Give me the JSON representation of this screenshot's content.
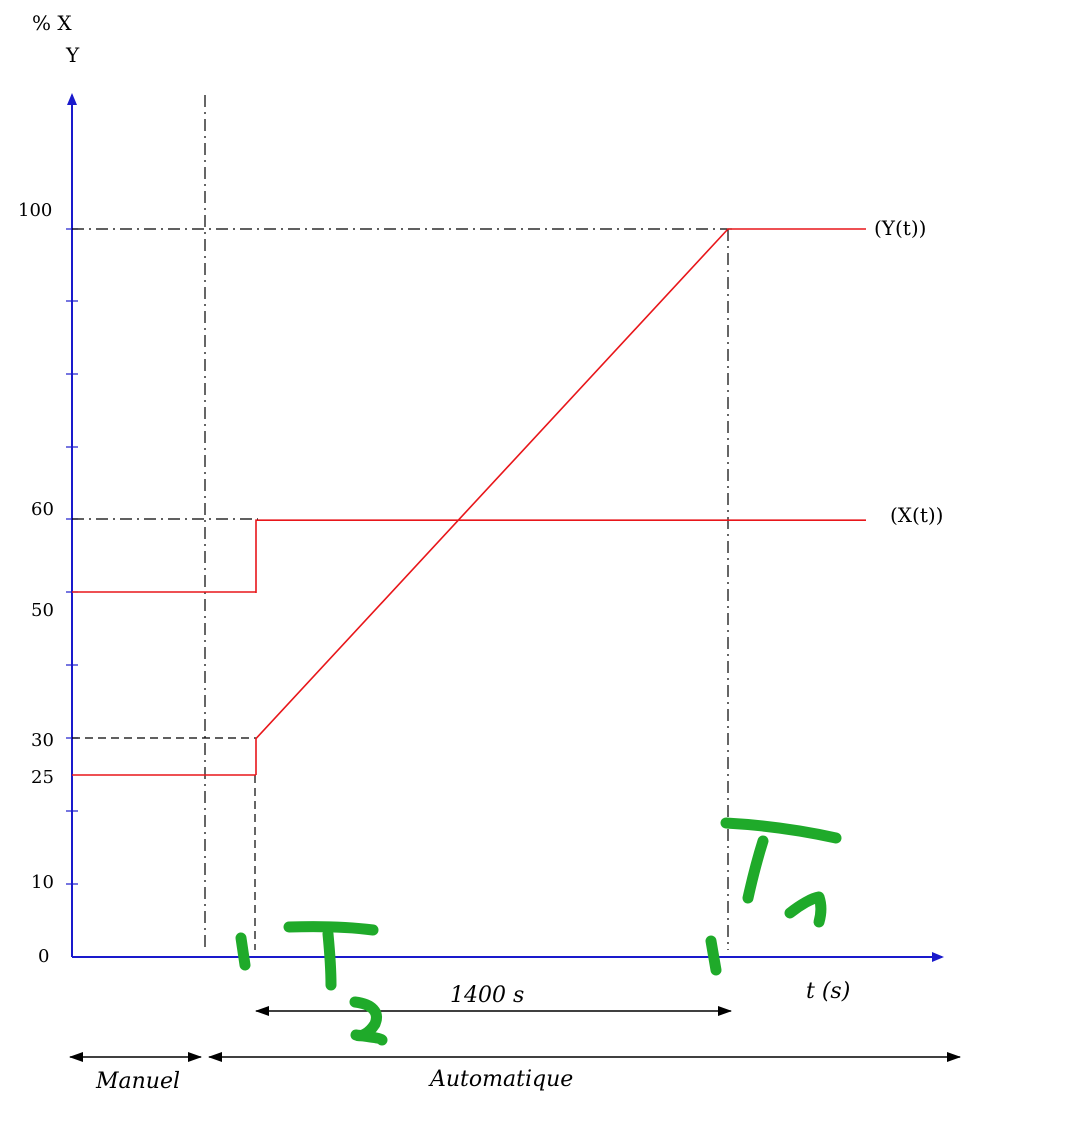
{
  "chart_data": {
    "type": "line",
    "y_axis_label_line1": "% X",
    "y_axis_label_line2": "Y",
    "x_axis_label": "t (s)",
    "y_ticks": [
      "0",
      "10",
      "25",
      "30",
      "50",
      "60",
      "100"
    ],
    "ylim": [
      0,
      100
    ],
    "series": [
      {
        "name": "(Y(t))",
        "color": "#e8161a",
        "points": [
          [
            0,
            25
          ],
          [
            0,
            30
          ],
          [
            1400,
            100
          ],
          [
            1900,
            100
          ]
        ]
      },
      {
        "name": "(X(t))",
        "color": "#e8161a",
        "points": [
          [
            0,
            50
          ],
          [
            0,
            60
          ],
          [
            1900,
            60
          ]
        ]
      }
    ],
    "annotations": {
      "duration": "1400 s",
      "phase_manual": "Manuel",
      "phase_auto": "Automatique",
      "handwritten_left": "T2",
      "handwritten_right": "T1"
    },
    "colors": {
      "axis": "#1a1acc",
      "series": "#e8161a",
      "guides": "#000000",
      "ink": "#1faa2a"
    }
  }
}
